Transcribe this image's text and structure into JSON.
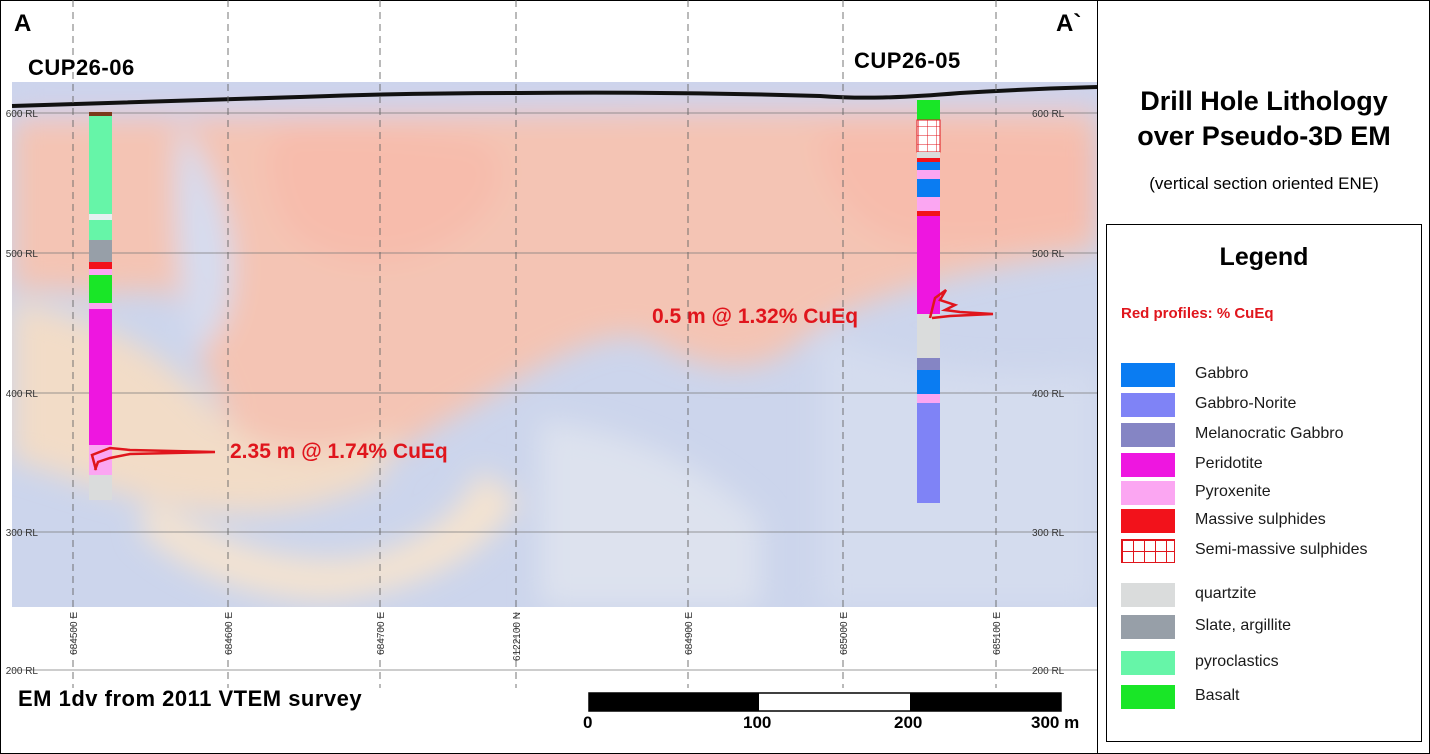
{
  "section": {
    "left_marker": "A",
    "right_marker": "A`",
    "holes": [
      {
        "id": "CUP26-06"
      },
      {
        "id": "CUP26-05"
      }
    ],
    "intercepts": [
      {
        "hole": "CUP26-06",
        "text": "2.35 m @ 1.74% CuEq"
      },
      {
        "hole": "CUP26-05",
        "text": "0.5 m @ 1.32% CuEq"
      }
    ],
    "rl_labels": [
      "600 RL",
      "500 RL",
      "400 RL",
      "300 RL",
      "200 RL"
    ],
    "easting_labels": [
      "684500 E",
      "684600 E",
      "684700 E",
      "6122100 N",
      "684900 E",
      "685000 E",
      "685100 E"
    ],
    "survey": "EM 1dv from 2011 VTEM survey",
    "scale_bar": {
      "labels": [
        "0",
        "100",
        "200",
        "300 m"
      ]
    }
  },
  "side_panel": {
    "title_line1": "Drill Hole Lithology",
    "title_line2": "over Pseudo-3D EM",
    "subtitle": "(vertical section oriented ENE)"
  },
  "legend": {
    "title": "Legend",
    "note": "Red profiles: % CuEq",
    "items": [
      {
        "label": "Gabbro",
        "color": "#0a7cf2"
      },
      {
        "label": "Gabbro-Norite",
        "color": "#7f83f6"
      },
      {
        "label": "Melanocratic Gabbro",
        "color": "#8585c4"
      },
      {
        "label": "Peridotite",
        "color": "#ee16e0"
      },
      {
        "label": "Pyroxenite",
        "color": "#fba6f2"
      },
      {
        "label": "Massive sulphides",
        "color": "#f2121b"
      },
      {
        "label": "Semi-massive sulphides",
        "color": "#ffffff",
        "pattern": "grid-red"
      },
      {
        "label": "quartzite",
        "color": "#dadcdc"
      },
      {
        "label": "Slate, argillite",
        "color": "#979fa8"
      },
      {
        "label": "pyroclastics",
        "color": "#66f5a8"
      },
      {
        "label": "Basalt",
        "color": "#19e627"
      }
    ]
  },
  "colors": {
    "profile_red": "#e0151c",
    "em_high": "#f6bfae",
    "em_low": "#c6cfe8"
  }
}
